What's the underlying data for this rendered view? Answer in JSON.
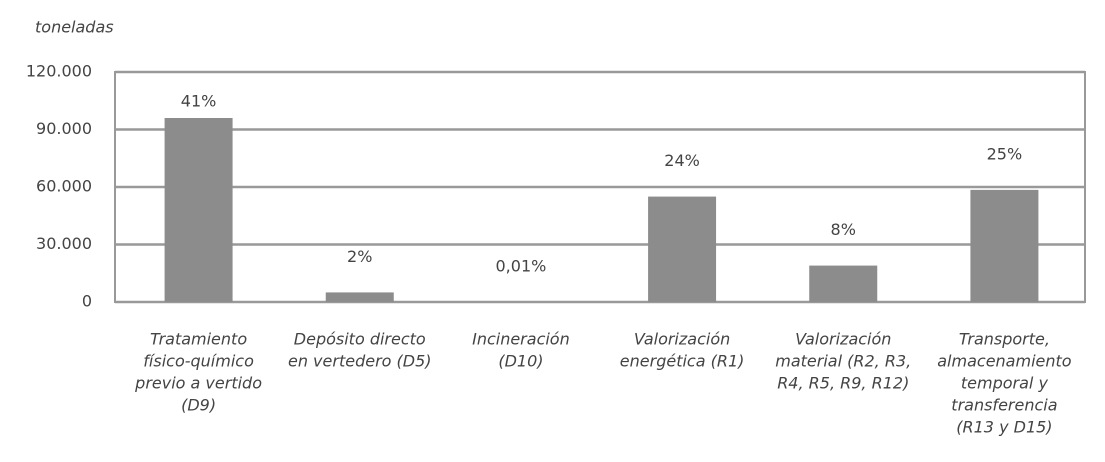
{
  "chart_data": {
    "type": "bar",
    "y_axis_label": "toneladas",
    "categories": [
      [
        "Tratamiento",
        "físico-químico",
        "previo a vertido",
        "(D9)"
      ],
      [
        "Depósito directo",
        "en vertedero (D5)"
      ],
      [
        "Incineración",
        "(D10)"
      ],
      [
        "Valorización",
        "energética (R1)"
      ],
      [
        "Valorización",
        "material (R2, R3,",
        "R4, R5, R9, R12)"
      ],
      [
        "Transporte,",
        "almacenamiento",
        "temporal y",
        "transferencia",
        "(R13 y D15)"
      ]
    ],
    "values": [
      96000,
      5000,
      25,
      55000,
      19000,
      58500
    ],
    "percent_labels": [
      "41%",
      "2%",
      "0,01%",
      "24%",
      "8%",
      "25%"
    ],
    "color": "#8c8c8c",
    "ylim": [
      0,
      120000
    ],
    "yticks": [
      {
        "value": 0,
        "label": "0"
      },
      {
        "value": 30000,
        "label": "30.000"
      },
      {
        "value": 60000,
        "label": "60.000"
      },
      {
        "value": 90000,
        "label": "90.000"
      },
      {
        "value": 120000,
        "label": "120.000"
      }
    ],
    "grid": true
  }
}
